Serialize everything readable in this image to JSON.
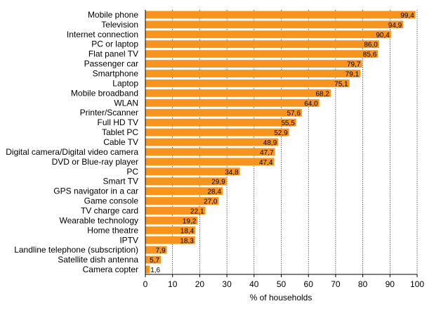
{
  "chart_data": {
    "type": "bar",
    "orientation": "horizontal",
    "categories": [
      "Mobile phone",
      "Television",
      "Internet connection",
      "PC or laptop",
      "Flat panel TV",
      "Passenger car",
      "Smartphone",
      "Laptop",
      "Mobile broadband",
      "WLAN",
      "Printer/Scanner",
      "Full HD TV",
      "Tablet PC",
      "Cable TV",
      "Digital camera/Digital video camera",
      "DVD or Blue-ray player",
      "PC",
      "Smart TV",
      "GPS navigator in a car",
      "Game console",
      "TV charge card",
      "Wearable technology",
      "Home theatre",
      "IPTV",
      "Landline telephone (subscription)",
      "Satellite dish antenna",
      "Camera copter"
    ],
    "values": [
      99.4,
      94.9,
      90.4,
      86.0,
      85.6,
      79.7,
      79.1,
      75.1,
      68.2,
      64.0,
      57.6,
      55.5,
      52.9,
      48.9,
      47.7,
      47.4,
      34.8,
      29.9,
      28.4,
      27.0,
      22.1,
      19.2,
      18.4,
      18.3,
      7.9,
      5.7,
      1.6
    ],
    "value_labels": [
      "99,4",
      "94,9",
      "90,4",
      "86,0",
      "85,6",
      "79,7",
      "79,1",
      "75,1",
      "68,2",
      "64,0",
      "57,6",
      "55,5",
      "52,9",
      "48,9",
      "47,7",
      "47,4",
      "34,8",
      "29,9",
      "28,4",
      "27,0",
      "22,1",
      "19,2",
      "18,4",
      "18,3",
      "7,9",
      "5,7",
      "1,6"
    ],
    "xlabel": "% of households",
    "xlim": [
      0,
      100
    ],
    "xticks": [
      0,
      10,
      20,
      30,
      40,
      50,
      60,
      70,
      80,
      90,
      100
    ],
    "xtick_labels": [
      "0",
      "10",
      "20",
      "30",
      "40",
      "50",
      "60",
      "70",
      "80",
      "90",
      "100"
    ],
    "grid": "vertical",
    "legend": "none",
    "colors": {
      "bar": "#F7941D",
      "grid": "#000000",
      "axis": "#000000",
      "text": "#000000"
    }
  }
}
